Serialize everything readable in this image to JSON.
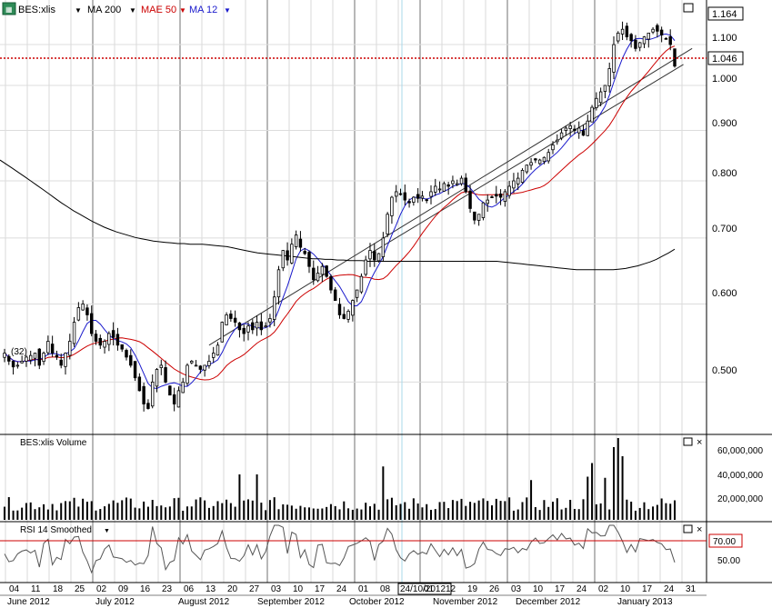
{
  "toolbar": {
    "symbol": "BES:xlis",
    "indicators": [
      {
        "label": "MA 200",
        "color": "#000000"
      },
      {
        "label": "MAE 50",
        "color": "#cc0000"
      },
      {
        "label": "MA 12",
        "color": "#1a1acc"
      }
    ]
  },
  "price_axis": {
    "ticks": [
      "1.100",
      "1.000",
      "0.900",
      "0.800",
      "0.700",
      "0.600",
      "0.500"
    ],
    "last_price_label": "1.164",
    "current_price_label": "1.046",
    "left_label": "(32)"
  },
  "volume_pane": {
    "title": "BES:xlis Volume",
    "ticks": [
      "60,000,000",
      "40,000,000",
      "20,000,000"
    ]
  },
  "rsi_pane": {
    "title": "RSI 14 Smoothed",
    "ticks": [
      "70.00",
      "50.00"
    ]
  },
  "date_axis": {
    "day_labels": [
      "04",
      "11",
      "18",
      "25",
      "02",
      "09",
      "16",
      "23",
      "06",
      "13",
      "20",
      "27",
      "03",
      "10",
      "17",
      "24",
      "01",
      "08",
      "24/10/2012",
      "01",
      "12",
      "19",
      "26",
      "03",
      "10",
      "17",
      "24",
      "02",
      "10",
      "17",
      "24",
      "31"
    ],
    "month_labels": [
      "June 2012",
      "July 2012",
      "August 2012",
      "September 2012",
      "October 2012",
      "November 2012",
      "December 2012",
      "January 2013"
    ]
  },
  "chart_data": {
    "type": "candlestick",
    "y_scale": "log",
    "ylim": [
      0.45,
      1.17
    ],
    "volume_ylim": [
      0,
      72000000
    ],
    "grid": true,
    "series": [
      {
        "name": "MA 200",
        "color": "#000000"
      },
      {
        "name": "MAE 50",
        "color": "#cc0000"
      },
      {
        "name": "MA 12",
        "color": "#1a1acc"
      }
    ],
    "closes": [
      0.535,
      0.525,
      0.518,
      0.52,
      0.525,
      0.53,
      0.532,
      0.535,
      0.52,
      0.535,
      0.55,
      0.535,
      0.53,
      0.52,
      0.535,
      0.55,
      0.575,
      0.595,
      0.6,
      0.585,
      0.56,
      0.55,
      0.545,
      0.55,
      0.56,
      0.555,
      0.545,
      0.54,
      0.53,
      0.52,
      0.505,
      0.49,
      0.475,
      0.47,
      0.5,
      0.515,
      0.52,
      0.5,
      0.485,
      0.475,
      0.49,
      0.5,
      0.52,
      0.525,
      0.52,
      0.515,
      0.52,
      0.525,
      0.535,
      0.545,
      0.575,
      0.585,
      0.58,
      0.575,
      0.565,
      0.56,
      0.57,
      0.565,
      0.575,
      0.565,
      0.57,
      0.58,
      0.61,
      0.65,
      0.68,
      0.665,
      0.69,
      0.705,
      0.685,
      0.675,
      0.655,
      0.635,
      0.645,
      0.655,
      0.64,
      0.62,
      0.605,
      0.585,
      0.58,
      0.59,
      0.605,
      0.62,
      0.64,
      0.665,
      0.68,
      0.665,
      0.675,
      0.7,
      0.74,
      0.77,
      0.78,
      0.775,
      0.765,
      0.76,
      0.77,
      0.768,
      0.772,
      0.765,
      0.78,
      0.79,
      0.785,
      0.795,
      0.79,
      0.8,
      0.795,
      0.805,
      0.78,
      0.75,
      0.73,
      0.74,
      0.76,
      0.765,
      0.77,
      0.772,
      0.77,
      0.78,
      0.79,
      0.8,
      0.805,
      0.82,
      0.83,
      0.835,
      0.84,
      0.84,
      0.845,
      0.855,
      0.87,
      0.88,
      0.895,
      0.905,
      0.91,
      0.9,
      0.905,
      0.89,
      0.92,
      0.95,
      0.97,
      0.985,
      1.0,
      1.04,
      1.1,
      1.13,
      1.14,
      1.12,
      1.11,
      1.09,
      1.105,
      1.12,
      1.13,
      1.14,
      1.135,
      1.125,
      1.115,
      1.1,
      1.046
    ],
    "ma200": [
      0.84,
      0.832,
      0.824,
      0.816,
      0.808,
      0.8,
      0.792,
      0.784,
      0.776,
      0.768,
      0.76,
      0.753,
      0.746,
      0.74,
      0.734,
      0.728,
      0.723,
      0.718,
      0.714,
      0.71,
      0.707,
      0.704,
      0.701,
      0.699,
      0.697,
      0.695,
      0.694,
      0.693,
      0.692,
      0.691,
      0.691,
      0.69,
      0.69,
      0.69,
      0.689,
      0.688,
      0.687,
      0.686,
      0.684,
      0.682,
      0.68,
      0.678,
      0.676,
      0.675,
      0.674,
      0.673,
      0.672,
      0.671,
      0.67,
      0.669,
      0.668,
      0.667,
      0.667,
      0.666,
      0.666,
      0.665,
      0.665,
      0.664,
      0.664,
      0.664,
      0.663,
      0.663,
      0.663,
      0.663,
      0.663,
      0.663,
      0.663,
      0.663,
      0.663,
      0.663,
      0.663,
      0.663,
      0.663,
      0.663,
      0.663,
      0.663,
      0.663,
      0.663,
      0.663,
      0.663,
      0.663,
      0.663,
      0.662,
      0.661,
      0.66,
      0.659,
      0.658,
      0.657,
      0.656,
      0.655,
      0.654,
      0.653,
      0.652,
      0.651,
      0.65,
      0.65,
      0.65,
      0.65,
      0.65,
      0.65,
      0.65,
      0.651,
      0.652,
      0.654,
      0.656,
      0.659,
      0.662,
      0.666,
      0.671,
      0.676,
      0.682
    ],
    "ma200_start_index": 0
  }
}
